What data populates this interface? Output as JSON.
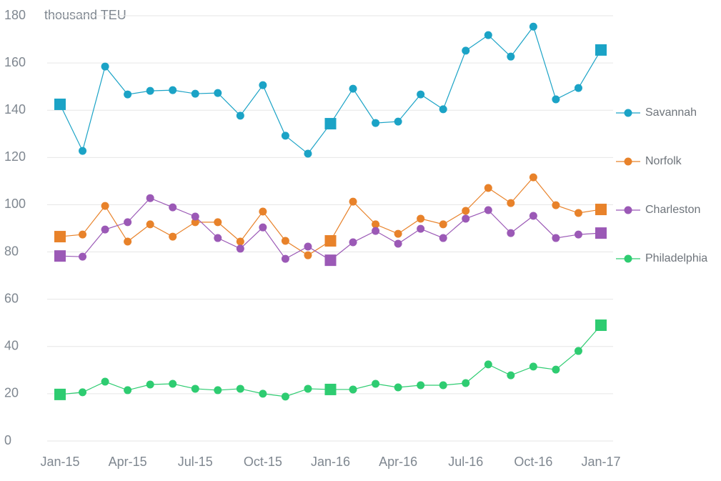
{
  "chart_data": {
    "type": "line",
    "unit_label": "thousand TEU",
    "categories": [
      "Jan-15",
      null,
      null,
      "Apr-15",
      null,
      null,
      "Jul-15",
      null,
      null,
      "Oct-15",
      null,
      null,
      "Jan-16",
      null,
      null,
      "Apr-16",
      null,
      null,
      "Jul-16",
      null,
      null,
      "Oct-16",
      null,
      null,
      "Jan-17"
    ],
    "ylim": [
      0,
      180
    ],
    "yticks": [
      0,
      20,
      40,
      60,
      80,
      100,
      120,
      140,
      160,
      180
    ],
    "grid": true,
    "legend": "right",
    "series": [
      {
        "name": "Savannah",
        "color": "#1ba3c6",
        "values": [
          142.5,
          122.8,
          158.5,
          146.7,
          148.2,
          148.5,
          147,
          147.3,
          137.7,
          150.6,
          129.2,
          121.6,
          134.3,
          149.1,
          134.6,
          135.2,
          146.7,
          140.4,
          165.2,
          171.8,
          162.7,
          175.4,
          144.6,
          149.4,
          165.5
        ]
      },
      {
        "name": "Norfolk",
        "color": "#e8822a",
        "values": [
          86.5,
          87.4,
          99.5,
          84.4,
          91.7,
          86.5,
          92.6,
          92.6,
          84.4,
          97.1,
          84.7,
          78.6,
          84.7,
          101.3,
          91.7,
          87.7,
          94.1,
          91.7,
          97.4,
          107.1,
          100.7,
          111.6,
          99.8,
          96.5,
          98
        ]
      },
      {
        "name": "Charleston",
        "color": "#9b59b6",
        "values": [
          78.3,
          78,
          89.5,
          92.6,
          102.8,
          98.9,
          95,
          85.9,
          81.4,
          90.4,
          77.1,
          82.3,
          76.5,
          84.1,
          88.9,
          83.5,
          89.8,
          85.9,
          94.1,
          97.7,
          88,
          95.3,
          85.9,
          87.4,
          88
        ]
      },
      {
        "name": "Philadelphia",
        "color": "#2ecc71",
        "values": [
          19.7,
          20.6,
          25.1,
          21.5,
          23.9,
          24.2,
          22.1,
          21.5,
          22.1,
          20,
          18.8,
          22.1,
          21.8,
          21.8,
          24.2,
          22.7,
          23.6,
          23.6,
          24.5,
          32.4,
          27.8,
          31.5,
          30.2,
          38.1,
          49
        ]
      }
    ]
  }
}
